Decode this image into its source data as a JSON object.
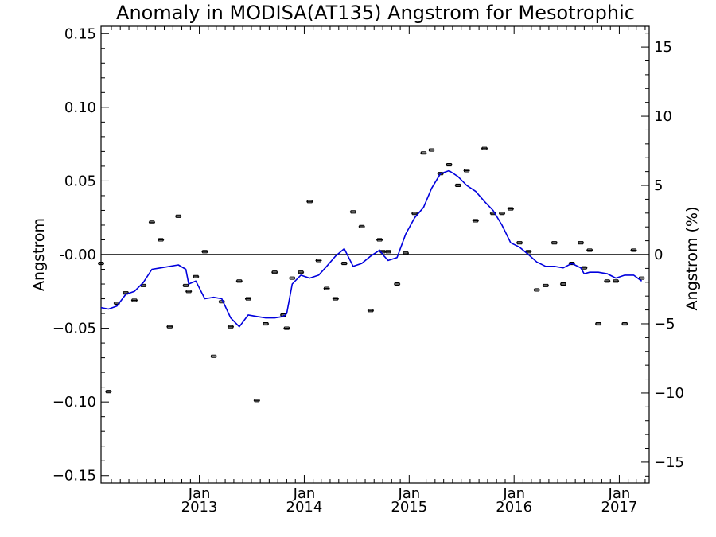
{
  "chart_data": {
    "type": "line",
    "title": "Anomaly in MODISA(AT135) Angstrom for Mesotrophic",
    "ylabel": "Angstrom",
    "ylabel_right": "Angstrom (%)",
    "ylim": [
      -0.155,
      0.155
    ],
    "ylim_right": [
      -16.5,
      16.5
    ],
    "y_ticks": [
      -0.15,
      -0.1,
      -0.05,
      0.0,
      0.05,
      0.1,
      0.15
    ],
    "y_tick_labels": [
      "−0.15",
      "−0.10",
      "−0.05",
      "-0.00",
      "0.05",
      "0.10",
      "0.15"
    ],
    "y_right_ticks": [
      -15,
      -10,
      -5,
      0,
      5,
      10,
      15
    ],
    "y_right_tick_labels": [
      "−15",
      "−10",
      "−5",
      "0",
      "5",
      "10",
      "15"
    ],
    "xlim": [
      "2012-01-25",
      "2017-04-15"
    ],
    "x_ticks": [
      {
        "date": "2013-01-01",
        "month": "Jan",
        "year": "2013"
      },
      {
        "date": "2014-01-01",
        "month": "Jan",
        "year": "2014"
      },
      {
        "date": "2015-01-01",
        "month": "Jan",
        "year": "2015"
      },
      {
        "date": "2016-01-01",
        "month": "Jan",
        "year": "2016"
      },
      {
        "date": "2017-01-01",
        "month": "Jan",
        "year": "2017"
      }
    ],
    "zero_line": 0,
    "series": [
      {
        "type": "scatter-errorbar",
        "color": "#000000",
        "points": [
          [
            "2012-01-25",
            -0.006
          ],
          [
            "2012-02-20",
            -0.093
          ],
          [
            "2012-03-20",
            -0.033
          ],
          [
            "2012-04-20",
            -0.026
          ],
          [
            "2012-05-20",
            -0.031
          ],
          [
            "2012-06-20",
            -0.021
          ],
          [
            "2012-07-20",
            0.022
          ],
          [
            "2012-08-20",
            0.01
          ],
          [
            "2012-09-20",
            -0.049
          ],
          [
            "2012-10-20",
            0.026
          ],
          [
            "2012-11-15",
            -0.021
          ],
          [
            "2012-11-25",
            -0.025
          ],
          [
            "2012-12-20",
            -0.015
          ],
          [
            "2013-01-20",
            0.002
          ],
          [
            "2013-02-20",
            -0.069
          ],
          [
            "2013-03-20",
            -0.032
          ],
          [
            "2013-04-20",
            -0.049
          ],
          [
            "2013-05-20",
            -0.018
          ],
          [
            "2013-06-20",
            -0.03
          ],
          [
            "2013-07-20",
            -0.099
          ],
          [
            "2013-08-20",
            -0.047
          ],
          [
            "2013-09-20",
            -0.012
          ],
          [
            "2013-10-20",
            -0.041
          ],
          [
            "2013-11-01",
            -0.05
          ],
          [
            "2013-11-20",
            -0.016
          ],
          [
            "2013-12-20",
            -0.012
          ],
          [
            "2014-01-20",
            0.036
          ],
          [
            "2014-02-20",
            -0.004
          ],
          [
            "2014-03-20",
            -0.023
          ],
          [
            "2014-04-20",
            -0.03
          ],
          [
            "2014-05-20",
            -0.006
          ],
          [
            "2014-06-20",
            0.029
          ],
          [
            "2014-07-20",
            0.019
          ],
          [
            "2014-08-20",
            -0.038
          ],
          [
            "2014-09-20",
            0.01
          ],
          [
            "2014-10-01",
            0.002
          ],
          [
            "2014-10-20",
            0.002
          ],
          [
            "2014-11-20",
            -0.02
          ],
          [
            "2014-12-20",
            0.001
          ],
          [
            "2015-01-20",
            0.028
          ],
          [
            "2015-02-20",
            0.069
          ],
          [
            "2015-03-20",
            0.071
          ],
          [
            "2015-04-20",
            0.055
          ],
          [
            "2015-05-20",
            0.061
          ],
          [
            "2015-06-20",
            0.047
          ],
          [
            "2015-07-20",
            0.057
          ],
          [
            "2015-08-20",
            0.023
          ],
          [
            "2015-09-20",
            0.072
          ],
          [
            "2015-10-20",
            0.028
          ],
          [
            "2015-11-20",
            0.028
          ],
          [
            "2015-12-20",
            0.031
          ],
          [
            "2016-01-20",
            0.008
          ],
          [
            "2016-02-20",
            0.002
          ],
          [
            "2016-03-20",
            -0.024
          ],
          [
            "2016-04-20",
            -0.021
          ],
          [
            "2016-05-20",
            0.008
          ],
          [
            "2016-06-20",
            -0.02
          ],
          [
            "2016-07-20",
            -0.006
          ],
          [
            "2016-08-20",
            0.008
          ],
          [
            "2016-09-01",
            -0.009
          ],
          [
            "2016-09-20",
            0.003
          ],
          [
            "2016-10-20",
            -0.047
          ],
          [
            "2016-11-20",
            -0.018
          ],
          [
            "2016-12-20",
            -0.018
          ],
          [
            "2017-01-20",
            -0.047
          ],
          [
            "2017-02-20",
            0.003
          ],
          [
            "2017-03-20",
            -0.016
          ]
        ]
      },
      {
        "type": "line",
        "color": "#0000dd",
        "points": [
          [
            "2012-01-25",
            -0.036
          ],
          [
            "2012-02-20",
            -0.037
          ],
          [
            "2012-03-20",
            -0.035
          ],
          [
            "2012-04-20",
            -0.027
          ],
          [
            "2012-05-20",
            -0.025
          ],
          [
            "2012-06-20",
            -0.019
          ],
          [
            "2012-07-20",
            -0.01
          ],
          [
            "2012-08-20",
            -0.009
          ],
          [
            "2012-09-20",
            -0.008
          ],
          [
            "2012-10-20",
            -0.007
          ],
          [
            "2012-11-15",
            -0.01
          ],
          [
            "2012-11-25",
            -0.02
          ],
          [
            "2012-12-20",
            -0.018
          ],
          [
            "2013-01-20",
            -0.03
          ],
          [
            "2013-02-20",
            -0.029
          ],
          [
            "2013-03-20",
            -0.03
          ],
          [
            "2013-04-20",
            -0.043
          ],
          [
            "2013-05-20",
            -0.049
          ],
          [
            "2013-06-20",
            -0.041
          ],
          [
            "2013-07-20",
            -0.042
          ],
          [
            "2013-08-20",
            -0.043
          ],
          [
            "2013-09-20",
            -0.043
          ],
          [
            "2013-10-20",
            -0.042
          ],
          [
            "2013-11-01",
            -0.04
          ],
          [
            "2013-11-20",
            -0.02
          ],
          [
            "2013-12-20",
            -0.014
          ],
          [
            "2014-01-20",
            -0.016
          ],
          [
            "2014-02-20",
            -0.014
          ],
          [
            "2014-03-20",
            -0.008
          ],
          [
            "2014-04-20",
            -0.001
          ],
          [
            "2014-05-20",
            0.004
          ],
          [
            "2014-06-20",
            -0.008
          ],
          [
            "2014-07-20",
            -0.006
          ],
          [
            "2014-08-20",
            -0.001
          ],
          [
            "2014-09-20",
            0.003
          ],
          [
            "2014-10-01",
            0.0
          ],
          [
            "2014-10-20",
            -0.004
          ],
          [
            "2014-11-20",
            -0.002
          ],
          [
            "2014-12-20",
            0.014
          ],
          [
            "2015-01-20",
            0.025
          ],
          [
            "2015-02-20",
            0.032
          ],
          [
            "2015-03-20",
            0.045
          ],
          [
            "2015-04-20",
            0.055
          ],
          [
            "2015-05-20",
            0.057
          ],
          [
            "2015-06-20",
            0.053
          ],
          [
            "2015-07-20",
            0.047
          ],
          [
            "2015-08-20",
            0.043
          ],
          [
            "2015-09-20",
            0.036
          ],
          [
            "2015-10-20",
            0.03
          ],
          [
            "2015-11-20",
            0.02
          ],
          [
            "2015-12-20",
            0.008
          ],
          [
            "2016-01-20",
            0.005
          ],
          [
            "2016-02-20",
            0.0
          ],
          [
            "2016-03-20",
            -0.005
          ],
          [
            "2016-04-20",
            -0.008
          ],
          [
            "2016-05-20",
            -0.008
          ],
          [
            "2016-06-20",
            -0.009
          ],
          [
            "2016-07-20",
            -0.006
          ],
          [
            "2016-08-20",
            -0.009
          ],
          [
            "2016-09-01",
            -0.013
          ],
          [
            "2016-09-20",
            -0.012
          ],
          [
            "2016-10-20",
            -0.012
          ],
          [
            "2016-11-20",
            -0.013
          ],
          [
            "2016-12-20",
            -0.016
          ],
          [
            "2017-01-20",
            -0.014
          ],
          [
            "2017-02-20",
            -0.014
          ],
          [
            "2017-03-20",
            -0.018
          ]
        ]
      }
    ]
  }
}
